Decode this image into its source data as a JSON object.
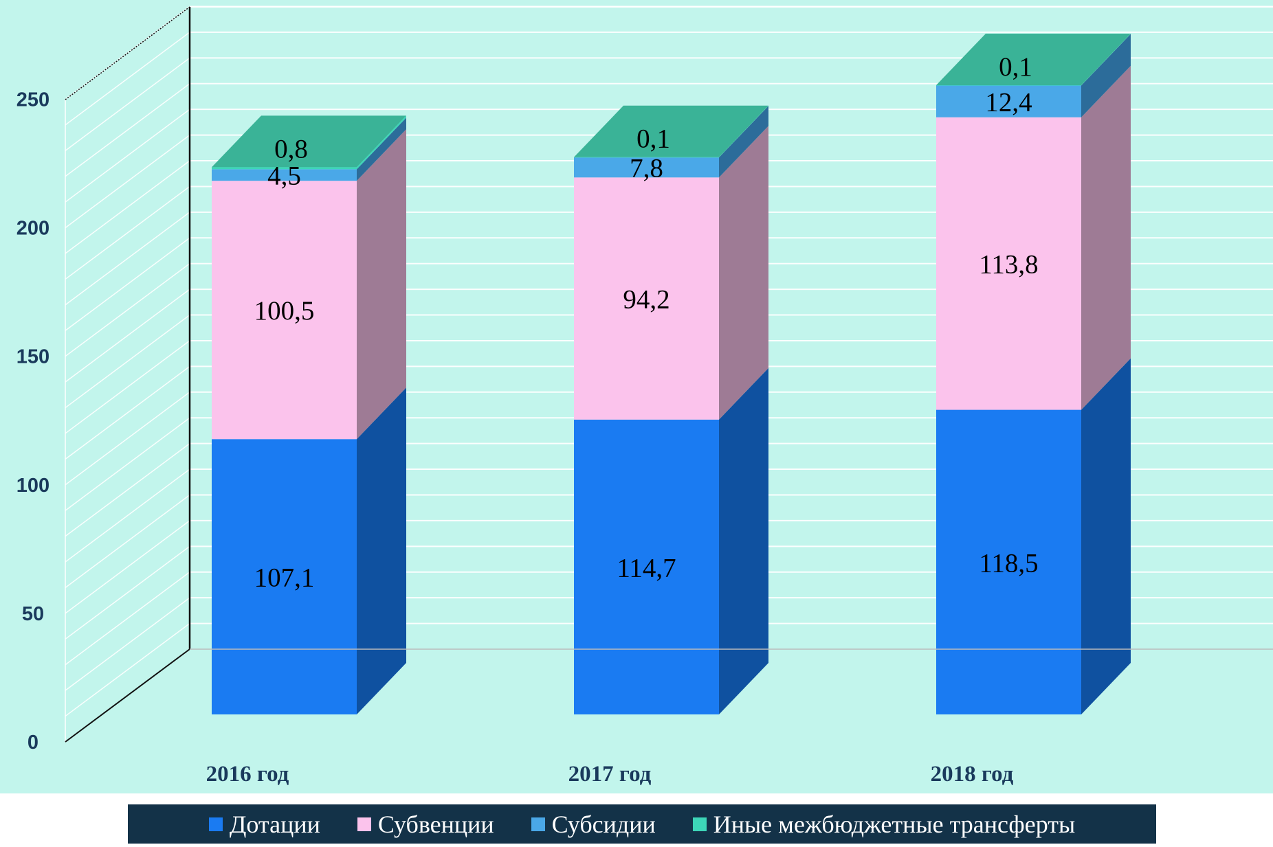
{
  "chart_data": {
    "type": "bar",
    "stacked": true,
    "three_d": true,
    "categories": [
      "2016 год",
      "2017 год",
      "2018 год"
    ],
    "series": [
      {
        "name": "Дотации",
        "values": [
          107.1,
          114.7,
          118.5
        ],
        "labels": [
          "107,1",
          "114,7",
          "118,5"
        ],
        "color": "#1a7bf2",
        "side_color": "#0f51a0"
      },
      {
        "name": "Субвенции",
        "values": [
          100.5,
          94.2,
          113.8
        ],
        "labels": [
          "100,5",
          "94,2",
          "113,8"
        ],
        "color": "#fbc3ec",
        "side_color": "#9e7b95"
      },
      {
        "name": "Субсидии",
        "values": [
          4.5,
          7.8,
          12.4
        ],
        "labels": [
          "4,5",
          "7,8",
          "12,4"
        ],
        "color": "#4aa8e8",
        "side_color": "#2c6c9a"
      },
      {
        "name": "Иные межбюджетные трансферты",
        "values": [
          0.8,
          0.1,
          0.1
        ],
        "labels": [
          "0,8",
          "0,1",
          "0,1"
        ],
        "color": "#3dd6b8",
        "top_color": "#3ab397"
      }
    ],
    "y_ticks": [
      "0",
      "50",
      "100",
      "150",
      "200",
      "250"
    ],
    "ylim": [
      0,
      250
    ],
    "grid": true,
    "legend_position": "bottom",
    "plot_background": "#c2f5ec",
    "legend_background": "#133248"
  }
}
